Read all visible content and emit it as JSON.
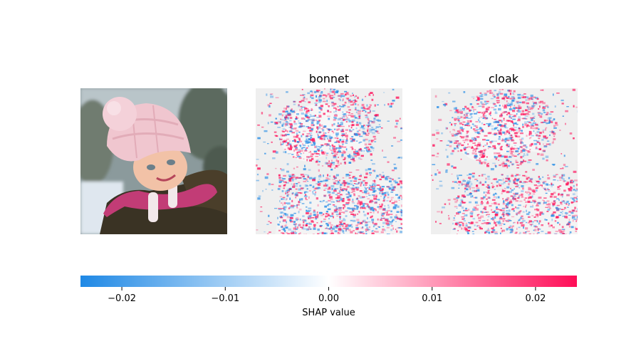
{
  "figure": {
    "panels": [
      {
        "id": "original",
        "kind": "photo",
        "title": ""
      },
      {
        "id": "bonnet",
        "kind": "shap-map",
        "title": "bonnet"
      },
      {
        "id": "cloak",
        "kind": "shap-map",
        "title": "cloak"
      }
    ]
  },
  "chart_data": {
    "type": "heatmap",
    "title": "",
    "panel_titles": [
      "bonnet",
      "cloak"
    ],
    "colorbar": {
      "label": "SHAP value",
      "vmin": -0.024,
      "vmax": 0.024,
      "ticks": [
        -0.02,
        -0.01,
        0.0,
        0.01,
        0.02
      ],
      "tick_labels": [
        "−0.02",
        "−0.01",
        "0.00",
        "0.01",
        "0.02"
      ],
      "colors": {
        "negative": "#1e88e5",
        "zero": "#ffffff",
        "positive": "#ff0d57"
      }
    }
  }
}
